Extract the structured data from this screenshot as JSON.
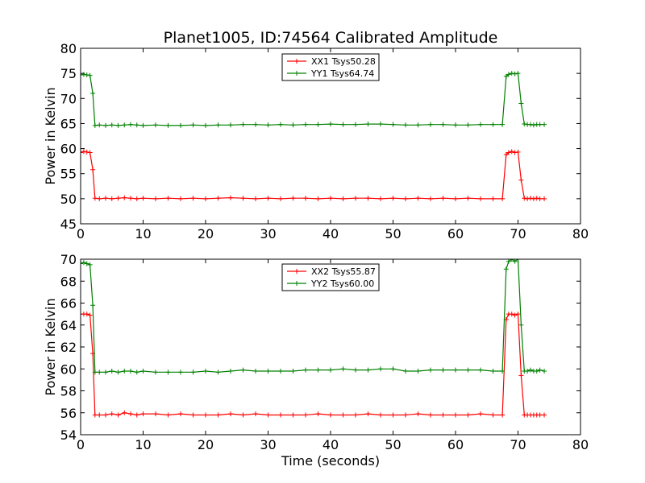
{
  "chart_data": [
    {
      "type": "line",
      "title": "Planet1005, ID:74564 Calibrated Amplitude",
      "xlabel": "",
      "ylabel": "Power in Kelvin",
      "xlim": [
        0,
        80
      ],
      "ylim": [
        45,
        80
      ],
      "xticks": [
        0,
        10,
        20,
        30,
        40,
        50,
        60,
        70,
        80
      ],
      "yticks": [
        45,
        50,
        55,
        60,
        65,
        70,
        75,
        80
      ],
      "legend_position": "top-center",
      "series": [
        {
          "name": "XX1 Tsys50.28",
          "color": "#ff0000",
          "x": [
            0,
            0.5,
            1,
            1.5,
            1.95,
            2.3,
            3,
            4,
            5,
            6,
            7,
            8,
            9,
            10,
            12,
            14,
            16,
            18,
            20,
            22,
            24,
            26,
            28,
            30,
            32,
            34,
            36,
            38,
            40,
            42,
            44,
            46,
            48,
            50,
            52,
            54,
            56,
            58,
            60,
            62,
            64,
            66,
            67.5,
            68.1,
            68.5,
            69,
            69.5,
            70,
            70.5,
            71,
            71.5,
            72,
            72.5,
            73,
            73.5,
            74.2
          ],
          "y": [
            59.2,
            59.4,
            59.3,
            59.2,
            55.8,
            50.1,
            50.0,
            50.1,
            50.0,
            50.1,
            50.2,
            50.1,
            50.0,
            50.1,
            50.0,
            50.1,
            50.0,
            50.1,
            50.0,
            50.1,
            50.2,
            50.1,
            50.0,
            50.1,
            50.0,
            50.1,
            50.1,
            50.0,
            50.1,
            50.0,
            50.1,
            50.1,
            50.0,
            50.1,
            50.0,
            50.1,
            50.0,
            50.1,
            50.0,
            50.1,
            50.0,
            50.0,
            50.0,
            58.8,
            59.2,
            59.4,
            59.2,
            59.3,
            53.7,
            50.1,
            50.0,
            50.1,
            50.0,
            50.1,
            50.0,
            50.0
          ]
        },
        {
          "name": "YY1 Tsys64.74",
          "color": "#008000",
          "x": [
            0,
            0.5,
            1,
            1.5,
            1.95,
            2.3,
            3,
            4,
            5,
            6,
            7,
            8,
            9,
            10,
            12,
            14,
            16,
            18,
            20,
            22,
            24,
            26,
            28,
            30,
            32,
            34,
            36,
            38,
            40,
            42,
            44,
            46,
            48,
            50,
            52,
            54,
            56,
            58,
            60,
            62,
            64,
            66,
            67.5,
            68.1,
            68.5,
            69,
            69.5,
            70,
            70.5,
            71,
            71.5,
            72,
            72.5,
            73,
            73.5,
            74.2
          ],
          "y": [
            74.7,
            74.8,
            74.7,
            74.6,
            71.0,
            64.6,
            64.7,
            64.6,
            64.7,
            64.6,
            64.7,
            64.8,
            64.7,
            64.6,
            64.7,
            64.6,
            64.6,
            64.7,
            64.6,
            64.7,
            64.7,
            64.8,
            64.8,
            64.7,
            64.8,
            64.7,
            64.8,
            64.8,
            64.9,
            64.8,
            64.8,
            64.9,
            64.9,
            64.8,
            64.7,
            64.7,
            64.8,
            64.8,
            64.7,
            64.7,
            64.8,
            64.8,
            64.8,
            74.4,
            74.8,
            75.0,
            74.9,
            75.0,
            69.0,
            64.9,
            64.8,
            64.8,
            64.7,
            64.8,
            64.8,
            64.8
          ]
        }
      ]
    },
    {
      "type": "line",
      "title": "",
      "xlabel": "Time (seconds)",
      "ylabel": "Power in Kelvin",
      "xlim": [
        0,
        80
      ],
      "ylim": [
        54,
        70
      ],
      "xticks": [
        0,
        10,
        20,
        30,
        40,
        50,
        60,
        70,
        80
      ],
      "yticks": [
        54,
        56,
        58,
        60,
        62,
        64,
        66,
        68,
        70
      ],
      "legend_position": "top-center",
      "series": [
        {
          "name": "XX2 Tsys55.87",
          "color": "#ff0000",
          "x": [
            0,
            0.5,
            1,
            1.5,
            1.95,
            2.3,
            3,
            4,
            5,
            6,
            7,
            8,
            9,
            10,
            12,
            14,
            16,
            18,
            20,
            22,
            24,
            26,
            28,
            30,
            32,
            34,
            36,
            38,
            40,
            42,
            44,
            46,
            48,
            50,
            52,
            54,
            56,
            58,
            60,
            62,
            64,
            66,
            67.5,
            68.1,
            68.5,
            69,
            69.5,
            70,
            70.5,
            71,
            71.5,
            72,
            72.5,
            73,
            73.5,
            74.2
          ],
          "y": [
            65.0,
            65.0,
            65.0,
            64.9,
            61.4,
            55.8,
            55.8,
            55.8,
            55.9,
            55.8,
            56.0,
            55.9,
            55.8,
            55.9,
            55.9,
            55.8,
            55.9,
            55.8,
            55.8,
            55.8,
            55.9,
            55.8,
            55.9,
            55.8,
            55.8,
            55.8,
            55.8,
            55.9,
            55.8,
            55.8,
            55.8,
            55.9,
            55.8,
            55.8,
            55.8,
            55.9,
            55.8,
            55.8,
            55.8,
            55.8,
            55.9,
            55.8,
            55.8,
            64.5,
            65.0,
            65.0,
            64.9,
            65.0,
            59.4,
            55.8,
            55.8,
            55.8,
            55.8,
            55.8,
            55.8,
            55.8
          ]
        },
        {
          "name": "YY2 Tsys60.00",
          "color": "#008000",
          "x": [
            0,
            0.5,
            1,
            1.5,
            1.95,
            2.3,
            3,
            4,
            5,
            6,
            7,
            8,
            9,
            10,
            12,
            14,
            16,
            18,
            20,
            22,
            24,
            26,
            28,
            30,
            32,
            34,
            36,
            38,
            40,
            42,
            44,
            46,
            48,
            50,
            52,
            54,
            56,
            58,
            60,
            62,
            64,
            66,
            67.5,
            68.1,
            68.5,
            69,
            69.5,
            70,
            70.5,
            71,
            71.5,
            72,
            72.5,
            73,
            73.5,
            74.2
          ],
          "y": [
            69.6,
            69.7,
            69.6,
            69.5,
            65.8,
            59.7,
            59.7,
            59.7,
            59.8,
            59.7,
            59.8,
            59.8,
            59.7,
            59.8,
            59.7,
            59.7,
            59.7,
            59.7,
            59.8,
            59.7,
            59.8,
            59.9,
            59.8,
            59.8,
            59.8,
            59.8,
            59.9,
            59.9,
            59.9,
            60.0,
            59.9,
            59.9,
            60.0,
            60.0,
            59.8,
            59.8,
            59.9,
            59.9,
            59.9,
            59.9,
            59.9,
            59.8,
            59.8,
            69.1,
            69.8,
            70.0,
            69.8,
            70.0,
            64.0,
            59.8,
            59.8,
            59.9,
            59.8,
            59.8,
            59.9,
            59.8
          ]
        }
      ]
    }
  ]
}
